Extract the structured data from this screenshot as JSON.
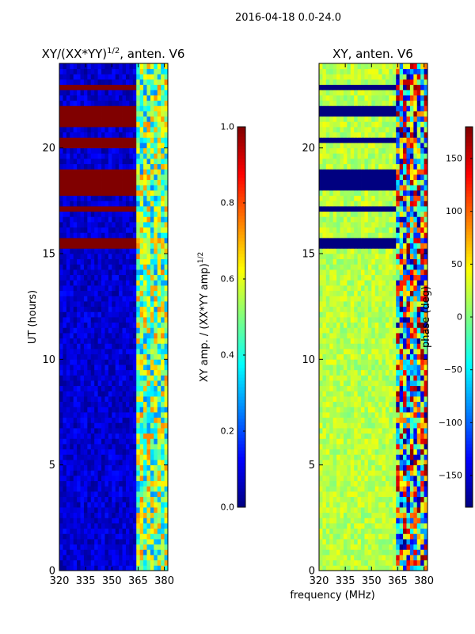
{
  "figure": {
    "suptitle": "2016-04-18 0.0-24.0",
    "xlabel": "frequency (MHz)"
  },
  "chart_data": [
    {
      "type": "heatmap",
      "title": "XY/(XX*YY)",
      "title_exp": "1/2",
      "title_suffix": ", anten. V6",
      "ylabel": "UT (hours)",
      "xlim": [
        320,
        382
      ],
      "ylim": [
        0,
        24
      ],
      "xticks": [
        320,
        335,
        350,
        365,
        380
      ],
      "yticks": [
        0,
        5,
        10,
        15,
        20
      ],
      "colormap": "jet",
      "colorbar": {
        "label": "XY amp. / (XX*YY amp)",
        "label_exp": "1/2",
        "range": [
          0.0,
          1.0
        ],
        "ticks": [
          "0.0",
          "0.2",
          "0.4",
          "0.6",
          "0.8",
          "1.0"
        ],
        "tick_values": [
          0.0,
          0.2,
          0.4,
          0.6,
          0.8,
          1.0
        ]
      },
      "baseline_value": 0.08,
      "saturated_bands": [
        {
          "from": 22.65,
          "to": 22.95,
          "value": 1.0
        },
        {
          "from": 21.0,
          "to": 22.1,
          "value": 1.0
        },
        {
          "from": 19.9,
          "to": 20.6,
          "value": 1.0
        },
        {
          "from": 17.85,
          "to": 18.9,
          "value": 1.0
        },
        {
          "from": 17.05,
          "to": 17.35,
          "value": 1.0
        },
        {
          "from": 15.2,
          "to": 15.8,
          "value": 1.0
        }
      ],
      "band_freq_range": [
        364,
        382
      ],
      "band_value": 0.5
    },
    {
      "type": "heatmap",
      "title": "XY, anten. V6",
      "ylabel": "",
      "xlim": [
        320,
        382
      ],
      "ylim": [
        0,
        24
      ],
      "xticks": [
        320,
        335,
        350,
        365,
        380
      ],
      "yticks": [
        0,
        5,
        10,
        15,
        20
      ],
      "colormap": "jet",
      "colorbar": {
        "label": "phase (deg)",
        "range": [
          -180,
          180
        ],
        "ticks": [
          "−150",
          "−100",
          "−50",
          "0",
          "50",
          "100",
          "150"
        ],
        "tick_values": [
          -150,
          -100,
          -50,
          0,
          50,
          100,
          150
        ]
      },
      "baseline_value": 20,
      "dark_bands": [
        {
          "from": 22.75,
          "to": 22.95,
          "value": -180
        },
        {
          "from": 21.5,
          "to": 22.1,
          "value": -180
        },
        {
          "from": 20.3,
          "to": 20.6,
          "value": -180
        },
        {
          "from": 18.0,
          "to": 18.9,
          "value": -180
        },
        {
          "from": 17.05,
          "to": 17.35,
          "value": -180
        },
        {
          "from": 15.2,
          "to": 15.8,
          "value": -180
        }
      ],
      "band_freq_range": [
        364,
        382
      ]
    }
  ]
}
